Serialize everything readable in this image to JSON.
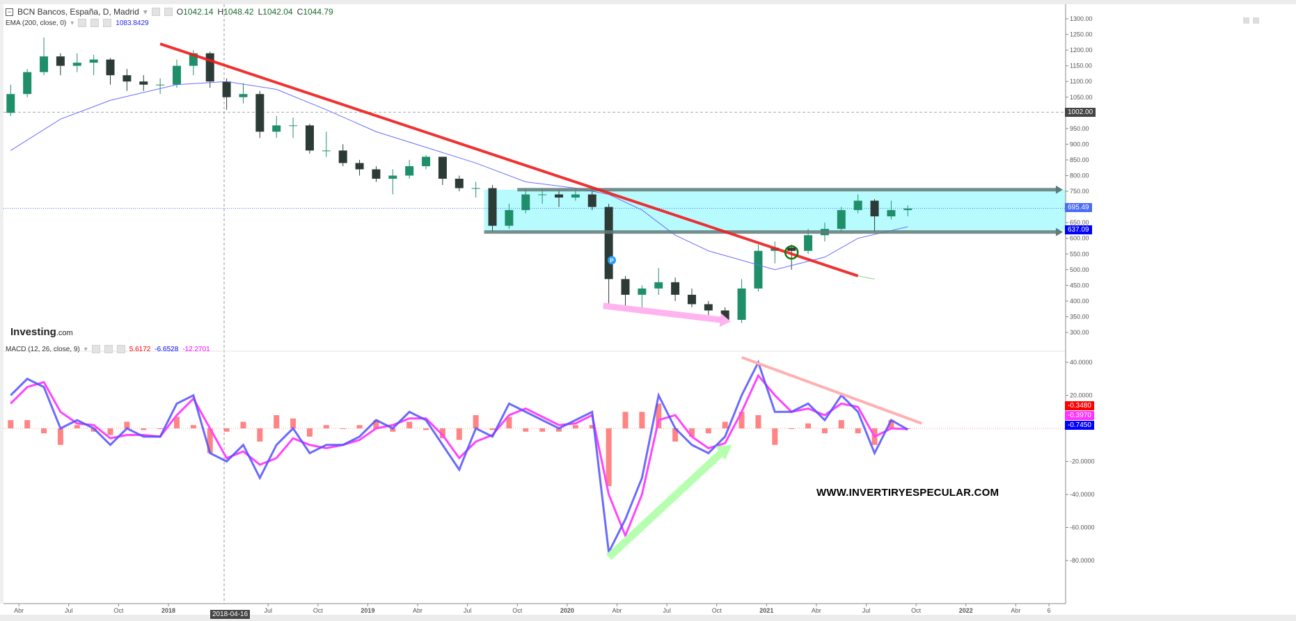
{
  "header": {
    "symbol": "BCN Bancos, España, D, Madrid",
    "o_label": "O",
    "o": "1042.14",
    "h_label": "H",
    "h": "1048.42",
    "l_label": "L",
    "l": "1042.04",
    "c_label": "C",
    "c": "1044.79",
    "ema_label": "EMA (200, close, 0)",
    "ema_value": "1083.8429",
    "macd_label": "MACD (12, 26, close, 9)",
    "macd_values": [
      "5.6172",
      "-6.6528",
      "-12.2701"
    ]
  },
  "logo": {
    "brand": "Investing",
    "suffix": ".com"
  },
  "watermark": "WWW.INVERTIRYESPECULAR.COM",
  "crosshair_date": "2018-04-16",
  "price_boxes": {
    "crosshair": "1002.00",
    "last": "695.49",
    "ema": "637.09"
  },
  "macd_boxes": {
    "hist": "-0.3480",
    "signal": "-0.3970",
    "macd": "-0.7450"
  },
  "colors": {
    "up": "#1f8f6a",
    "down": "#2d3b36",
    "ema": "#6b6bff",
    "trendline": "#ee1c1c",
    "range_fill": "#b8fbff",
    "range_arrow": "#5f7c7a",
    "macd": "#5050ff",
    "signal": "#ff44ff",
    "histogram": "#ff5050",
    "pink_arrow": "#ffb3f0",
    "green_arrow": "#b6ffb0",
    "circle": "#117711",
    "hist_box": "#ff0000",
    "signal_box": "#ff33ff",
    "macd_box": "#0000ff",
    "last_box": "#4a6cf7",
    "crosshair_box": "#444444"
  },
  "chart_data": [
    {
      "type": "candlestick",
      "title": "BCN Bancos, España, D, Madrid",
      "scale": "linear",
      "ylim": [
        300,
        1300
      ],
      "yticks": [
        "1300.00",
        "1250.00",
        "1200.00",
        "1150.00",
        "1100.00",
        "1050.00",
        "950.00",
        "900.00",
        "850.00",
        "800.00",
        "750.00",
        "650.00",
        "600.00",
        "550.00",
        "500.00",
        "450.00",
        "400.00",
        "350.00",
        "300.00"
      ],
      "xlim": [
        "2017-03",
        "2022-07"
      ],
      "xticks": [
        {
          "label": "Abr",
          "date": "2017-04"
        },
        {
          "label": "Jul",
          "date": "2017-07"
        },
        {
          "label": "Oct",
          "date": "2017-10"
        },
        {
          "label": "2018",
          "date": "2018-01"
        },
        {
          "label": "Jul",
          "date": "2018-07"
        },
        {
          "label": "Oct",
          "date": "2018-10"
        },
        {
          "label": "2019",
          "date": "2019-01"
        },
        {
          "label": "Abr",
          "date": "2019-04"
        },
        {
          "label": "Jul",
          "date": "2019-07"
        },
        {
          "label": "Oct",
          "date": "2019-10"
        },
        {
          "label": "2020",
          "date": "2020-01"
        },
        {
          "label": "Abr",
          "date": "2020-04"
        },
        {
          "label": "Jul",
          "date": "2020-07"
        },
        {
          "label": "Oct",
          "date": "2020-10"
        },
        {
          "label": "2021",
          "date": "2021-01"
        },
        {
          "label": "Abr",
          "date": "2021-04"
        },
        {
          "label": "Jul",
          "date": "2021-07"
        },
        {
          "label": "Oct",
          "date": "2021-10"
        },
        {
          "label": "2022",
          "date": "2022-01"
        },
        {
          "label": "Abr",
          "date": "2022-04"
        },
        {
          "label": "6",
          "date": "2022-06"
        }
      ],
      "ohlc_monthly": [
        [
          "2017-03",
          1000,
          1090,
          990,
          1060
        ],
        [
          "2017-04",
          1060,
          1140,
          1050,
          1130
        ],
        [
          "2017-05",
          1130,
          1240,
          1120,
          1180
        ],
        [
          "2017-06",
          1180,
          1190,
          1120,
          1150
        ],
        [
          "2017-07",
          1150,
          1190,
          1130,
          1160
        ],
        [
          "2017-08",
          1160,
          1185,
          1120,
          1170
        ],
        [
          "2017-09",
          1170,
          1175,
          1090,
          1120
        ],
        [
          "2017-10",
          1120,
          1140,
          1070,
          1100
        ],
        [
          "2017-11",
          1100,
          1120,
          1070,
          1090
        ],
        [
          "2017-12",
          1090,
          1110,
          1060,
          1090
        ],
        [
          "2018-01",
          1090,
          1170,
          1080,
          1150
        ],
        [
          "2018-02",
          1150,
          1200,
          1120,
          1190
        ],
        [
          "2018-03",
          1190,
          1195,
          1080,
          1100
        ],
        [
          "2018-04",
          1100,
          1110,
          1010,
          1050
        ],
        [
          "2018-05",
          1050,
          1095,
          1030,
          1060
        ],
        [
          "2018-06",
          1060,
          1070,
          920,
          940
        ],
        [
          "2018-07",
          940,
          990,
          920,
          960
        ],
        [
          "2018-08",
          960,
          985,
          920,
          960
        ],
        [
          "2018-09",
          960,
          965,
          870,
          880
        ],
        [
          "2018-10",
          880,
          940,
          860,
          880
        ],
        [
          "2018-11",
          880,
          900,
          830,
          840
        ],
        [
          "2018-12",
          840,
          850,
          800,
          820
        ],
        [
          "2019-01",
          820,
          830,
          780,
          790
        ],
        [
          "2019-02",
          790,
          820,
          740,
          800
        ],
        [
          "2019-03",
          800,
          850,
          790,
          830
        ],
        [
          "2019-04",
          830,
          865,
          820,
          860
        ],
        [
          "2019-05",
          860,
          860,
          770,
          790
        ],
        [
          "2019-06",
          790,
          800,
          750,
          760
        ],
        [
          "2019-07",
          760,
          780,
          730,
          760
        ],
        [
          "2019-08",
          760,
          770,
          620,
          640
        ],
        [
          "2019-09",
          640,
          710,
          630,
          690
        ],
        [
          "2019-10",
          690,
          760,
          680,
          740
        ],
        [
          "2019-11",
          740,
          760,
          710,
          740
        ],
        [
          "2019-12",
          740,
          755,
          700,
          730
        ],
        [
          "2020-01",
          730,
          760,
          720,
          740
        ],
        [
          "2020-02",
          740,
          760,
          690,
          700
        ],
        [
          "2020-03",
          700,
          710,
          380,
          470
        ],
        [
          "2020-04",
          470,
          480,
          370,
          420
        ],
        [
          "2020-05",
          420,
          450,
          360,
          440
        ],
        [
          "2020-06",
          440,
          505,
          420,
          460
        ],
        [
          "2020-07",
          460,
          475,
          400,
          420
        ],
        [
          "2020-08",
          420,
          440,
          380,
          390
        ],
        [
          "2020-09",
          390,
          400,
          355,
          370
        ],
        [
          "2020-10",
          370,
          380,
          330,
          340
        ],
        [
          "2020-11",
          340,
          470,
          330,
          440
        ],
        [
          "2020-12",
          440,
          580,
          430,
          560
        ],
        [
          "2021-01",
          560,
          590,
          520,
          570
        ],
        [
          "2021-02",
          570,
          580,
          500,
          560
        ],
        [
          "2021-03",
          560,
          630,
          550,
          610
        ],
        [
          "2021-04",
          610,
          650,
          590,
          630
        ],
        [
          "2021-05",
          630,
          700,
          620,
          690
        ],
        [
          "2021-06",
          690,
          740,
          680,
          720
        ],
        [
          "2021-07",
          720,
          725,
          620,
          670
        ],
        [
          "2021-08",
          670,
          720,
          660,
          690
        ],
        [
          "2021-09",
          690,
          705,
          670,
          695
        ]
      ],
      "ema200": [
        [
          "2017-03",
          880
        ],
        [
          "2017-06",
          980
        ],
        [
          "2017-09",
          1040
        ],
        [
          "2018-01",
          1090
        ],
        [
          "2018-04",
          1100
        ],
        [
          "2018-07",
          1075
        ],
        [
          "2018-10",
          1010
        ],
        [
          "2019-01",
          940
        ],
        [
          "2019-04",
          890
        ],
        [
          "2019-07",
          840
        ],
        [
          "2019-10",
          780
        ],
        [
          "2020-01",
          760
        ],
        [
          "2020-03",
          740
        ],
        [
          "2020-05",
          690
        ],
        [
          "2020-07",
          610
        ],
        [
          "2020-09",
          560
        ],
        [
          "2020-11",
          530
        ],
        [
          "2021-01",
          500
        ],
        [
          "2021-04",
          540
        ],
        [
          "2021-06",
          600
        ],
        [
          "2021-09",
          637
        ]
      ],
      "annotations": {
        "trendline": [
          [
            "2017-12",
            1220
          ],
          [
            "2021-06",
            480
          ]
        ],
        "trendline_ext": [
          [
            "2021-06",
            480
          ],
          [
            "2021-07",
            470
          ]
        ],
        "range_box": {
          "from": "2019-08",
          "to": "2022-07",
          "top": 755,
          "bottom": 625
        },
        "range_arrows": [
          {
            "from": "2019-10",
            "to": "2022-07",
            "value": 755
          },
          {
            "from": "2019-08",
            "to": "2022-07",
            "value": 620
          }
        ],
        "crosshair_price": 1002,
        "last_price": 695.49,
        "pink_arrow": [
          [
            "2020-03",
            385
          ],
          [
            "2020-10",
            335
          ]
        ],
        "circle": [
          "2021-02",
          555
        ],
        "marker": {
          "date": "2020-03",
          "value": 530,
          "label": "P"
        }
      }
    },
    {
      "type": "macd",
      "title": "MACD (12, 26, close, 9)",
      "ylim": [
        -85,
        45
      ],
      "yticks": [
        "40.0000",
        "20.0000",
        "-20.0000",
        "-40.0000",
        "-60.0000",
        "-80.0000"
      ],
      "series": [
        {
          "name": "MACD",
          "values": [
            20,
            30,
            25,
            0,
            5,
            0,
            -10,
            0,
            -5,
            -5,
            15,
            20,
            -15,
            -20,
            -10,
            -30,
            -10,
            0,
            -15,
            -10,
            -10,
            -5,
            5,
            0,
            10,
            5,
            -10,
            -25,
            0,
            -5,
            15,
            10,
            5,
            0,
            5,
            10,
            -75,
            -55,
            -30,
            20,
            0,
            -10,
            -15,
            -5,
            20,
            40,
            10,
            10,
            15,
            5,
            20,
            10,
            -15,
            5,
            -0.745
          ]
        },
        {
          "name": "Signal",
          "values": [
            15,
            25,
            28,
            10,
            3,
            2,
            -6,
            -4,
            -4,
            -5,
            8,
            18,
            0,
            -18,
            -14,
            -22,
            -18,
            -6,
            -10,
            -12,
            -10,
            -7,
            0,
            2,
            6,
            6,
            -4,
            -18,
            -8,
            -4,
            8,
            12,
            7,
            2,
            3,
            8,
            -40,
            -65,
            -40,
            5,
            8,
            -5,
            -12,
            -9,
            10,
            32,
            20,
            10,
            12,
            8,
            15,
            13,
            -5,
            0,
            -0.397
          ]
        }
      ],
      "annotations": {
        "green_arrow": [
          [
            "2020-03",
            -78
          ],
          [
            "2020-10",
            -10
          ]
        ],
        "pink_line": [
          [
            "2020-11",
            43
          ],
          [
            "2021-09",
            3
          ]
        ]
      }
    }
  ]
}
